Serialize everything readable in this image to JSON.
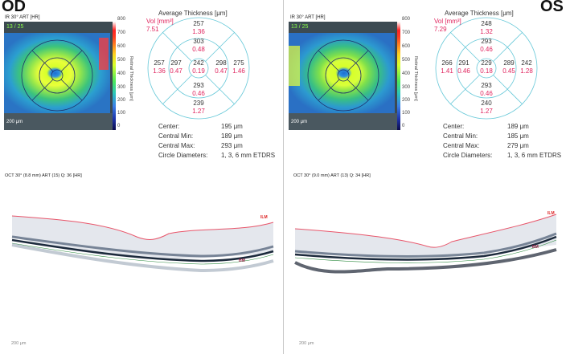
{
  "od": {
    "eye_label": "OD",
    "ir_title": "IR 30° ART [HR]",
    "ir_quality": "13 / 25",
    "ir_scale": "200 μm",
    "colorbar_ticks": [
      "800",
      "700",
      "600",
      "500",
      "400",
      "300",
      "200",
      "100",
      "0"
    ],
    "colorbar_label": "Retinal Thickness [μm]",
    "grid_title": "Average Thickness [μm]",
    "vol_label": "Vol [mm³]",
    "vol_value": "7.51",
    "grid": {
      "top_outer": "257",
      "top_outer_vol": "1.36",
      "top_inner": "303",
      "top_inner_vol": "0.48",
      "left_outer": "257",
      "left_outer_vol": "1.36",
      "left_inner": "297",
      "left_inner_vol": "0.47",
      "center": "242",
      "center_vol": "0.19",
      "right_inner": "298",
      "right_inner_vol": "0.47",
      "right_outer": "275",
      "right_outer_vol": "1.46",
      "bottom_inner": "293",
      "bottom_inner_vol": "0.46",
      "bottom_outer": "239",
      "bottom_outer_vol": "1.27"
    },
    "stats": {
      "center_label": "Center:",
      "center_value": "195 μm",
      "cmin_label": "Central Min:",
      "cmin_value": "189 μm",
      "cmax_label": "Central Max:",
      "cmax_value": "293 μm",
      "diam_label": "Circle Diameters:",
      "diam_value": "1, 3, 6 mm ETDRS"
    },
    "oct_title": "OCT 30° (8.8 mm) ART (15) Q: 36 [HR]",
    "oct_scale": "200 μm",
    "ilm": "ILM",
    "bm": "BM"
  },
  "os": {
    "eye_label": "OS",
    "ir_title": "IR 30° ART [HR]",
    "ir_quality": "13 / 25",
    "ir_scale": "200 μm",
    "colorbar_ticks": [
      "800",
      "700",
      "600",
      "500",
      "400",
      "300",
      "200",
      "100",
      "0"
    ],
    "colorbar_label": "Retinal Thickness [μm]",
    "grid_title": "Average Thickness [μm]",
    "vol_label": "Vol [mm³]",
    "vol_value": "7.29",
    "grid": {
      "top_outer": "248",
      "top_outer_vol": "1.32",
      "top_inner": "293",
      "top_inner_vol": "0.46",
      "left_outer": "266",
      "left_outer_vol": "1.41",
      "left_inner": "291",
      "left_inner_vol": "0.46",
      "center": "229",
      "center_vol": "0.18",
      "right_inner": "289",
      "right_inner_vol": "0.45",
      "right_outer": "242",
      "right_outer_vol": "1.28",
      "bottom_inner": "293",
      "bottom_inner_vol": "0.46",
      "bottom_outer": "240",
      "bottom_outer_vol": "1.27"
    },
    "stats": {
      "center_label": "Center:",
      "center_value": "189 μm",
      "cmin_label": "Central Min:",
      "cmin_value": "185 μm",
      "cmax_label": "Central Max:",
      "cmax_value": "279 μm",
      "diam_label": "Circle Diameters:",
      "diam_value": "1, 3, 6 mm ETDRS"
    },
    "oct_title": "OCT 30° (9.0 mm) ART (13) Q: 34 [HR]",
    "oct_scale": "200 μm",
    "ilm": "ILM",
    "bm": "BM"
  },
  "colors": {
    "accent_red": "#e0245e",
    "grid_line": "#66c8d8",
    "ilm_line": "#e8556a"
  }
}
